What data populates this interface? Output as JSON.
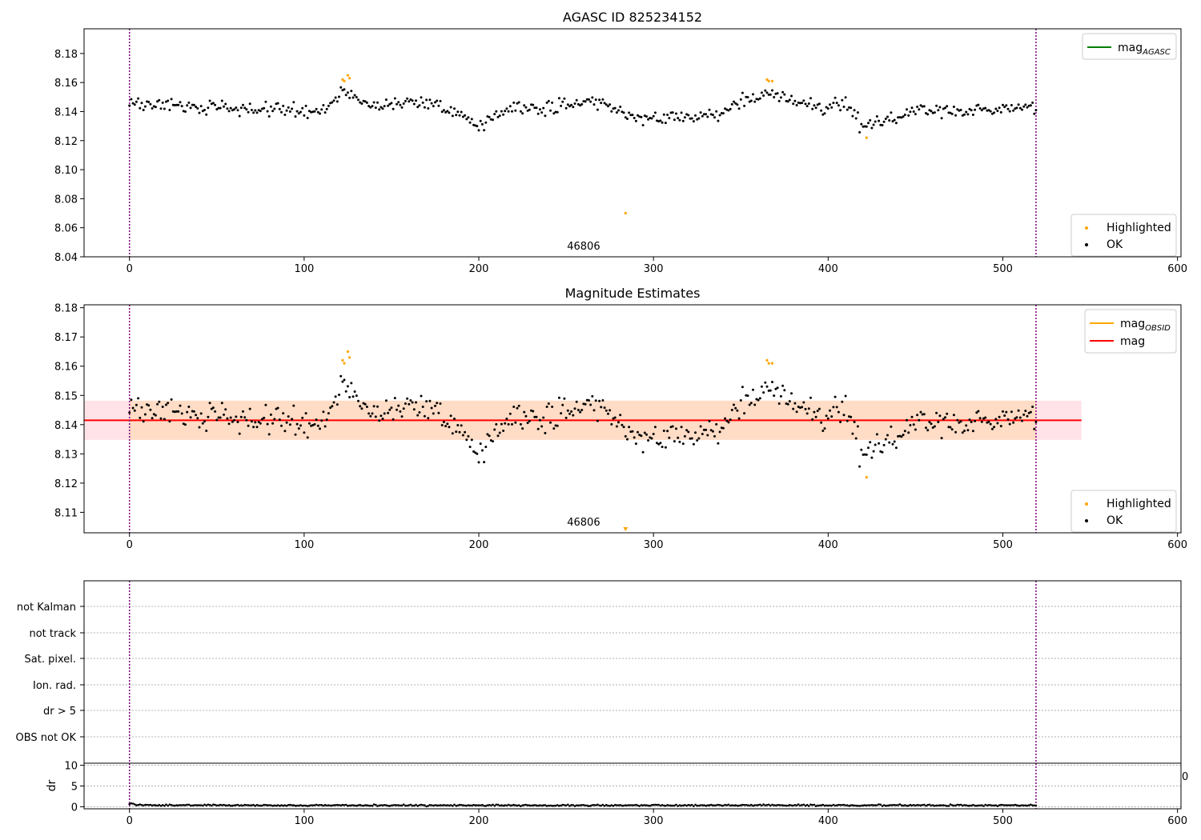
{
  "colors": {
    "ok": "#000000",
    "highlighted": "#ffa500",
    "mag_agasc": "#008000",
    "mag_obsid": "#ffa500",
    "mag": "#ff0000",
    "band_outer": "#ffc0cb",
    "band_inner": "#ffdab9",
    "obs_boundary": "#800080",
    "grid": "#b0b0b0"
  },
  "chart_data": [
    {
      "type": "scatter",
      "title": "AGASC ID 825234152",
      "xlim": [
        -26,
        602
      ],
      "ylim": [
        8.04,
        8.197
      ],
      "xticks": [
        0,
        100,
        200,
        300,
        400,
        500,
        600
      ],
      "yticks": [
        8.04,
        8.06,
        8.08,
        8.1,
        8.12,
        8.14,
        8.16,
        8.18
      ],
      "ytick_labels": [
        "8.04",
        "8.06",
        "8.08",
        "8.10",
        "8.12",
        "8.14",
        "8.16",
        "8.18"
      ],
      "obsid_label": "46806",
      "obsid_label_x": 260,
      "obs_boundaries": [
        0,
        519
      ],
      "legend_lines": [
        {
          "label": "mag",
          "sub": "AGASC",
          "color": "#008000"
        }
      ],
      "legend_points": [
        {
          "label": "Highlighted",
          "color": "#ffa500"
        },
        {
          "label": "OK",
          "color": "#000000"
        }
      ],
      "highlighted_points": [
        [
          122,
          8.162
        ],
        [
          123,
          8.161
        ],
        [
          125,
          8.165
        ],
        [
          126,
          8.163
        ],
        [
          365,
          8.162
        ],
        [
          366,
          8.161
        ],
        [
          368,
          8.161
        ],
        [
          422,
          8.122
        ],
        [
          284,
          8.07
        ]
      ]
    },
    {
      "type": "scatter",
      "title": "Magnitude Estimates",
      "xlim": [
        -26,
        602
      ],
      "ylim": [
        8.103,
        8.181
      ],
      "xticks": [
        0,
        100,
        200,
        300,
        400,
        500,
        600
      ],
      "yticks": [
        8.11,
        8.12,
        8.13,
        8.14,
        8.15,
        8.16,
        8.17,
        8.18
      ],
      "ytick_labels": [
        "8.11",
        "8.12",
        "8.13",
        "8.14",
        "8.15",
        "8.16",
        "8.17",
        "8.18"
      ],
      "obsid_label": "46806",
      "obsid_label_x": 260,
      "obs_boundaries": [
        0,
        519
      ],
      "mag_value": 8.1415,
      "band_outer": {
        "x": [
          -26,
          545
        ],
        "y": [
          8.1348,
          8.1482
        ]
      },
      "band_inner": {
        "x": [
          0,
          519
        ],
        "y": [
          8.1348,
          8.1482
        ]
      },
      "legend_lines": [
        {
          "label": "mag",
          "sub": "OBSID",
          "color": "#ffa500"
        },
        {
          "label": "mag",
          "sub": "",
          "color": "#ff0000"
        }
      ],
      "legend_points": [
        {
          "label": "Highlighted",
          "color": "#ffa500"
        },
        {
          "label": "OK",
          "color": "#000000"
        }
      ],
      "highlighted_points": [
        [
          122,
          8.162
        ],
        [
          123,
          8.161
        ],
        [
          125,
          8.165
        ],
        [
          126,
          8.163
        ],
        [
          365,
          8.162
        ],
        [
          366,
          8.161
        ],
        [
          368,
          8.161
        ],
        [
          422,
          8.122
        ]
      ],
      "clipped_marker": {
        "x": 284,
        "y": 8.07
      }
    },
    {
      "type": "scatter",
      "title": "",
      "xlim": [
        -26,
        602
      ],
      "ylim": [
        0,
        7
      ],
      "flag_labels": [
        "not Kalman",
        "not track",
        "Sat. pixel.",
        "Ion. rad.",
        "dr > 5",
        "OBS not OK"
      ],
      "obs_boundaries": [
        0,
        519
      ]
    },
    {
      "type": "scatter",
      "title": "",
      "xlabel": "",
      "ylabel": "dr",
      "xlim": [
        -26,
        602
      ],
      "ylim": [
        -0.5,
        10.5
      ],
      "xticks": [
        0,
        100,
        200,
        300,
        400,
        500,
        600
      ],
      "yticks": [
        0,
        5,
        10
      ],
      "ytick_labels": [
        "0",
        "5",
        "10"
      ],
      "right_tick_label": "0",
      "obs_boundaries": [
        0,
        519
      ]
    }
  ]
}
